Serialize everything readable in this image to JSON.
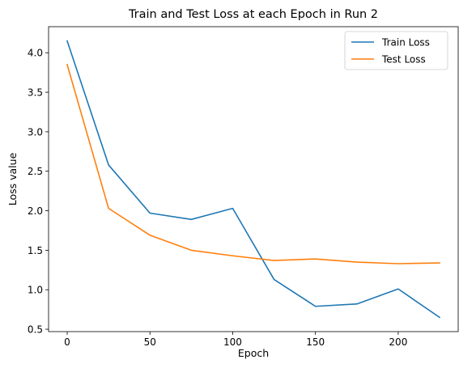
{
  "chart_data": {
    "type": "line",
    "title": "Train and Test Loss at each Epoch in Run 2",
    "xlabel": "Epoch",
    "ylabel": "Loss value",
    "x": [
      0,
      25,
      50,
      75,
      100,
      125,
      150,
      175,
      200,
      225
    ],
    "series": [
      {
        "name": "Train Loss",
        "color": "#1f77b4",
        "values": [
          4.15,
          2.58,
          1.97,
          1.89,
          2.03,
          1.13,
          0.79,
          0.82,
          1.01,
          0.65
        ]
      },
      {
        "name": "Test Loss",
        "color": "#ff7f0e",
        "values": [
          3.85,
          2.03,
          1.69,
          1.5,
          1.43,
          1.37,
          1.39,
          1.35,
          1.33,
          1.34
        ]
      }
    ],
    "xlim": [
      -11.25,
      236.25
    ],
    "ylim": [
      0.47,
      4.33
    ],
    "xticks": [
      0,
      50,
      100,
      150,
      200
    ],
    "xtick_labels": [
      "0",
      "50",
      "100",
      "150",
      "200"
    ],
    "yticks": [
      0.5,
      1.0,
      1.5,
      2.0,
      2.5,
      3.0,
      3.5,
      4.0
    ],
    "ytick_labels": [
      "0.5",
      "1.0",
      "1.5",
      "2.0",
      "2.5",
      "3.0",
      "3.5",
      "4.0"
    ],
    "grid": false,
    "legend_position": "top-right"
  }
}
